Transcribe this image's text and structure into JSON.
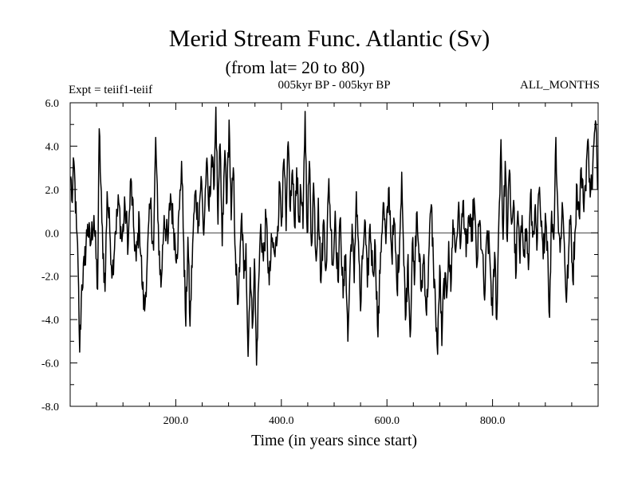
{
  "chart_data": {
    "type": "line",
    "title": "Merid Stream Func. Atlantic (Sv)",
    "subtitle": "(from lat= 20 to 80)",
    "header_left": "Expt = teiif1-teiif",
    "header_center": "005kyr BP - 005kyr BP",
    "header_right": "ALL_MONTHS",
    "xlabel": "Time (in years since start)",
    "ylabel": "",
    "xlim": [
      0,
      1000
    ],
    "ylim": [
      -8,
      6
    ],
    "x_ticks": [
      200,
      400,
      600,
      800
    ],
    "x_tick_labels": [
      "200.0",
      "400.0",
      "600.0",
      "800.0"
    ],
    "y_ticks": [
      -8,
      -6,
      -4,
      -2,
      0,
      2,
      4,
      6
    ],
    "y_tick_labels": [
      "-8.0",
      "-6.0",
      "-4.0",
      "-2.0",
      "0.0",
      "2.0",
      "4.0",
      "6.0"
    ],
    "zero_line": true,
    "grid": false,
    "series": [
      {
        "line_color": "#000000",
        "x_start": 1,
        "x_step": 1,
        "anchors": [
          [
            1,
            2.6
          ],
          [
            4,
            1.4
          ],
          [
            7,
            3.3
          ],
          [
            12,
            0.2
          ],
          [
            15,
            -1.6
          ],
          [
            18,
            -5.5
          ],
          [
            22,
            -2.4
          ],
          [
            27,
            -1.5
          ],
          [
            33,
            0.4
          ],
          [
            38,
            -0.6
          ],
          [
            45,
            0.8
          ],
          [
            52,
            -2.6
          ],
          [
            55,
            4.8
          ],
          [
            60,
            0.5
          ],
          [
            66,
            -2.7
          ],
          [
            70,
            1.9
          ],
          [
            75,
            0.1
          ],
          [
            80,
            -1.9
          ],
          [
            85,
            0.0
          ],
          [
            92,
            1.4
          ],
          [
            98,
            -0.4
          ],
          [
            104,
            1.2
          ],
          [
            110,
            -0.5
          ],
          [
            115,
            2.5
          ],
          [
            120,
            0.3
          ],
          [
            125,
            -1.3
          ],
          [
            131,
            0.6
          ],
          [
            137,
            -2.6
          ],
          [
            141,
            -3.6
          ],
          [
            146,
            -1.2
          ],
          [
            152,
            1.4
          ],
          [
            158,
            -0.8
          ],
          [
            162,
            4.4
          ],
          [
            166,
            0.6
          ],
          [
            172,
            -2.5
          ],
          [
            178,
            0.8
          ],
          [
            185,
            -0.5
          ],
          [
            190,
            1.8
          ],
          [
            196,
            0.2
          ],
          [
            202,
            -1.0
          ],
          [
            207,
            1.1
          ],
          [
            211,
            3.3
          ],
          [
            215,
            -0.4
          ],
          [
            219,
            -4.3
          ],
          [
            223,
            -0.2
          ],
          [
            227,
            -4.3
          ],
          [
            232,
            -0.5
          ],
          [
            237,
            1.9
          ],
          [
            243,
            0.5
          ],
          [
            248,
            2.6
          ],
          [
            253,
            -0.1
          ],
          [
            258,
            3.2
          ],
          [
            263,
            1.0
          ],
          [
            268,
            3.6
          ],
          [
            272,
            2.0
          ],
          [
            276,
            5.8
          ],
          [
            280,
            0.4
          ],
          [
            284,
            4.1
          ],
          [
            288,
            -0.6
          ],
          [
            293,
            3.8
          ],
          [
            297,
            1.4
          ],
          [
            301,
            5.2
          ],
          [
            305,
            0.6
          ],
          [
            309,
            3.0
          ],
          [
            313,
            -0.9
          ],
          [
            317,
            -3.3
          ],
          [
            321,
            -1.8
          ],
          [
            325,
            0.9
          ],
          [
            329,
            -2.1
          ],
          [
            333,
            -0.5
          ],
          [
            337,
            -5.7
          ],
          [
            341,
            -1.6
          ],
          [
            345,
            -4.4
          ],
          [
            349,
            -1.2
          ],
          [
            353,
            -6.1
          ],
          [
            357,
            -2.3
          ],
          [
            361,
            0.4
          ],
          [
            366,
            -1.3
          ],
          [
            371,
            0.7
          ],
          [
            377,
            -2.4
          ],
          [
            382,
            -0.4
          ],
          [
            388,
            -1.1
          ],
          [
            393,
            0.3
          ],
          [
            397,
            2.3
          ],
          [
            401,
            0.7
          ],
          [
            405,
            3.4
          ],
          [
            409,
            0.1
          ],
          [
            413,
            4.2
          ],
          [
            417,
            1.0
          ],
          [
            421,
            2.9
          ],
          [
            425,
            0.3
          ],
          [
            429,
            3.0
          ],
          [
            433,
            0.5
          ],
          [
            437,
            1.9
          ],
          [
            441,
            0.2
          ],
          [
            445,
            5.6
          ],
          [
            449,
            0.0
          ],
          [
            453,
            3.3
          ],
          [
            457,
            -0.6
          ],
          [
            461,
            2.3
          ],
          [
            466,
            -1.3
          ],
          [
            470,
            1.6
          ],
          [
            475,
            -2.3
          ],
          [
            480,
            0.6
          ],
          [
            485,
            -1.6
          ],
          [
            490,
            2.5
          ],
          [
            494,
            0.1
          ],
          [
            498,
            -1.5
          ],
          [
            502,
            1.0
          ],
          [
            507,
            -2.2
          ],
          [
            512,
            0.7
          ],
          [
            517,
            -3.0
          ],
          [
            522,
            -1.0
          ],
          [
            526,
            -5.0
          ],
          [
            530,
            -1.6
          ],
          [
            534,
            0.4
          ],
          [
            538,
            -2.3
          ],
          [
            542,
            1.9
          ],
          [
            546,
            -0.4
          ],
          [
            550,
            -3.6
          ],
          [
            554,
            -1.2
          ],
          [
            558,
            0.6
          ],
          [
            563,
            -2.5
          ],
          [
            568,
            0.4
          ],
          [
            573,
            -1.8
          ],
          [
            578,
            -0.6
          ],
          [
            583,
            -4.8
          ],
          [
            588,
            -0.9
          ],
          [
            593,
            1.4
          ],
          [
            598,
            -0.5
          ],
          [
            604,
            2.1
          ],
          [
            609,
            -1.0
          ],
          [
            614,
            0.5
          ],
          [
            619,
            -2.6
          ],
          [
            624,
            -0.4
          ],
          [
            628,
            2.8
          ],
          [
            632,
            -1.5
          ],
          [
            636,
            -3.8
          ],
          [
            640,
            -1.0
          ],
          [
            644,
            -4.8
          ],
          [
            648,
            -0.5
          ],
          [
            652,
            -2.4
          ],
          [
            656,
            0.9
          ],
          [
            660,
            -0.6
          ],
          [
            665,
            -2.7
          ],
          [
            670,
            -1.0
          ],
          [
            675,
            -3.8
          ],
          [
            680,
            -0.6
          ],
          [
            684,
            1.3
          ],
          [
            688,
            -1.4
          ],
          [
            692,
            -3.4
          ],
          [
            696,
            -5.6
          ],
          [
            700,
            -1.5
          ],
          [
            704,
            -5.2
          ],
          [
            708,
            -2.1
          ],
          [
            713,
            -3.0
          ],
          [
            717,
            -0.4
          ],
          [
            721,
            -2.7
          ],
          [
            725,
            0.6
          ],
          [
            730,
            -0.9
          ],
          [
            735,
            1.0
          ],
          [
            740,
            -0.4
          ],
          [
            745,
            1.5
          ],
          [
            750,
            -1.1
          ],
          [
            755,
            0.8
          ],
          [
            760,
            -0.4
          ],
          [
            765,
            1.6
          ],
          [
            770,
            -1.6
          ],
          [
            775,
            0.5
          ],
          [
            780,
            -0.8
          ],
          [
            785,
            -3.1
          ],
          [
            790,
            0.1
          ],
          [
            795,
            -1.2
          ],
          [
            800,
            -3.8
          ],
          [
            804,
            -0.9
          ],
          [
            808,
            -4.0
          ],
          [
            812,
            0.6
          ],
          [
            816,
            4.3
          ],
          [
            820,
            -0.3
          ],
          [
            824,
            3.3
          ],
          [
            828,
            -0.4
          ],
          [
            832,
            2.9
          ],
          [
            836,
            0.4
          ],
          [
            840,
            1.5
          ],
          [
            844,
            -2.1
          ],
          [
            848,
            1.0
          ],
          [
            852,
            -1.4
          ],
          [
            856,
            0.8
          ],
          [
            860,
            -0.8
          ],
          [
            864,
            0.2
          ],
          [
            868,
            -1.7
          ],
          [
            872,
            1.8
          ],
          [
            876,
            -0.2
          ],
          [
            880,
            1.0
          ],
          [
            884,
            -0.8
          ],
          [
            888,
            1.9
          ],
          [
            892,
            0.3
          ],
          [
            896,
            -1.2
          ],
          [
            900,
            0.9
          ],
          [
            904,
            -0.4
          ],
          [
            908,
            -3.9
          ],
          [
            912,
            1.0
          ],
          [
            916,
            -0.3
          ],
          [
            920,
            4.4
          ],
          [
            924,
            0.8
          ],
          [
            928,
            -0.9
          ],
          [
            932,
            1.4
          ],
          [
            936,
            -0.5
          ],
          [
            940,
            -3.2
          ],
          [
            944,
            -1.0
          ],
          [
            948,
            0.8
          ],
          [
            952,
            -2.2
          ],
          [
            956,
            0.0
          ],
          [
            960,
            2.2
          ],
          [
            964,
            0.8
          ],
          [
            968,
            3.0
          ],
          [
            972,
            1.4
          ],
          [
            976,
            2.2
          ],
          [
            980,
            4.2
          ],
          [
            984,
            2.5
          ],
          [
            988,
            2.0
          ],
          [
            992,
            4.1
          ],
          [
            996,
            5.0
          ],
          [
            999,
            2.0
          ]
        ]
      }
    ]
  }
}
